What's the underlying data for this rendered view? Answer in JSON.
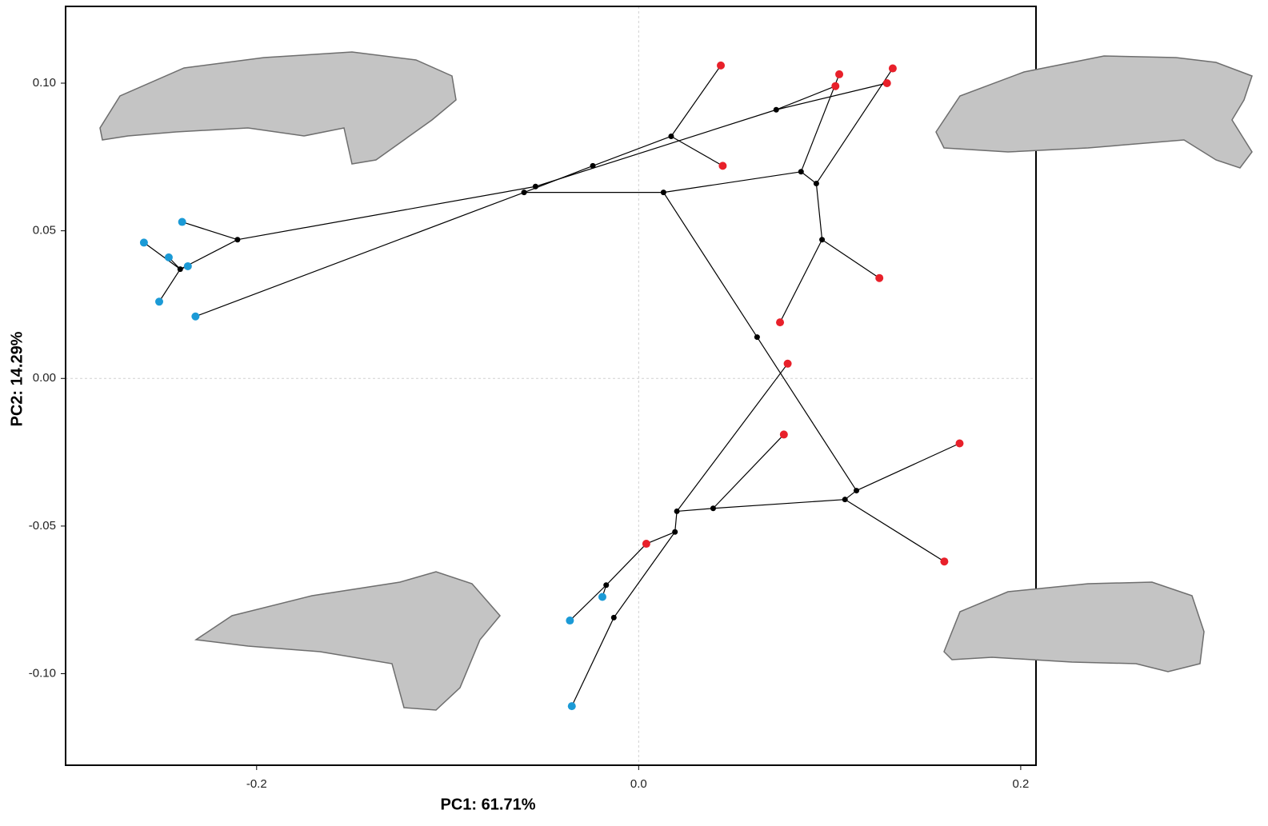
{
  "chart_data": {
    "type": "scatter",
    "x_label": "PC1: 61.71%",
    "y_label": "PC2: 14.29%",
    "xlim": [
      -0.3,
      0.208
    ],
    "ylim": [
      -0.131,
      0.126
    ],
    "xticks": [
      -0.2,
      {
        "value": 0,
        "label": "0.0"
      },
      0.2
    ],
    "yticks": [
      {
        "value": 0.1,
        "label": "0.10"
      },
      0.05,
      {
        "value": 0,
        "label": "0.00"
      },
      -0.05,
      {
        "value": -0.1,
        "label": "-0.10"
      }
    ],
    "zero_lines": true,
    "edge_color": "#000000",
    "edges": [
      {
        "x": [
          -0.21,
          -0.239
        ],
        "y": [
          0.047,
          0.053
        ]
      },
      {
        "x": [
          -0.21,
          -0.24
        ],
        "y": [
          0.047,
          0.037
        ]
      },
      {
        "x": [
          -0.24,
          -0.259
        ],
        "y": [
          0.037,
          0.046
        ]
      },
      {
        "x": [
          -0.24,
          -0.246
        ],
        "y": [
          0.037,
          0.041
        ]
      },
      {
        "x": [
          -0.24,
          -0.236
        ],
        "y": [
          0.037,
          0.038
        ]
      },
      {
        "x": [
          -0.24,
          -0.251
        ],
        "y": [
          0.037,
          0.026
        ]
      },
      {
        "x": [
          -0.21,
          -0.054
        ],
        "y": [
          0.047,
          0.065
        ]
      },
      {
        "x": [
          -0.232,
          -0.06
        ],
        "y": [
          0.021,
          0.063
        ]
      },
      {
        "x": [
          -0.06,
          -0.024
        ],
        "y": [
          0.063,
          0.072
        ]
      },
      {
        "x": [
          -0.024,
          0.017
        ],
        "y": [
          0.072,
          0.082
        ]
      },
      {
        "x": [
          0.017,
          0.043
        ],
        "y": [
          0.082,
          0.106
        ]
      },
      {
        "x": [
          0.017,
          0.044
        ],
        "y": [
          0.082,
          0.072
        ]
      },
      {
        "x": [
          -0.054,
          0.072
        ],
        "y": [
          0.065,
          0.091
        ]
      },
      {
        "x": [
          0.072,
          0.103
        ],
        "y": [
          0.091,
          0.099
        ]
      },
      {
        "x": [
          0.072,
          0.13
        ],
        "y": [
          0.091,
          0.1
        ]
      },
      {
        "x": [
          0.085,
          0.105
        ],
        "y": [
          0.07,
          0.103
        ]
      },
      {
        "x": [
          0.085,
          0.093
        ],
        "y": [
          0.07,
          0.066
        ]
      },
      {
        "x": [
          0.093,
          0.133
        ],
        "y": [
          0.066,
          0.105
        ]
      },
      {
        "x": [
          0.093,
          0.096
        ],
        "y": [
          0.066,
          0.047
        ]
      },
      {
        "x": [
          0.096,
          0.126
        ],
        "y": [
          0.047,
          0.034
        ]
      },
      {
        "x": [
          0.096,
          0.074
        ],
        "y": [
          0.047,
          0.019
        ]
      },
      {
        "x": [
          -0.06,
          0.013
        ],
        "y": [
          0.063,
          0.063
        ]
      },
      {
        "x": [
          0.013,
          0.085
        ],
        "y": [
          0.063,
          0.07
        ]
      },
      {
        "x": [
          0.013,
          0.062
        ],
        "y": [
          0.063,
          0.014
        ]
      },
      {
        "x": [
          0.062,
          0.114
        ],
        "y": [
          0.014,
          -0.038
        ]
      },
      {
        "x": [
          0.114,
          0.168
        ],
        "y": [
          -0.038,
          -0.022
        ]
      },
      {
        "x": [
          0.114,
          0.108
        ],
        "y": [
          -0.038,
          -0.041
        ]
      },
      {
        "x": [
          0.108,
          0.16
        ],
        "y": [
          -0.041,
          -0.062
        ]
      },
      {
        "x": [
          0.108,
          0.039
        ],
        "y": [
          -0.041,
          -0.044
        ]
      },
      {
        "x": [
          0.039,
          0.076
        ],
        "y": [
          -0.044,
          -0.019
        ]
      },
      {
        "x": [
          0.039,
          0.02
        ],
        "y": [
          -0.044,
          -0.045
        ]
      },
      {
        "x": [
          0.02,
          0.078
        ],
        "y": [
          -0.045,
          0.005
        ]
      },
      {
        "x": [
          0.02,
          0.019
        ],
        "y": [
          -0.045,
          -0.052
        ]
      },
      {
        "x": [
          0.019,
          -0.013
        ],
        "y": [
          -0.052,
          -0.081
        ]
      },
      {
        "x": [
          0.019,
          0.004
        ],
        "y": [
          -0.052,
          -0.056
        ]
      },
      {
        "x": [
          0.004,
          -0.017
        ],
        "y": [
          -0.056,
          -0.07
        ]
      },
      {
        "x": [
          -0.017,
          -0.019
        ],
        "y": [
          -0.07,
          -0.074
        ]
      },
      {
        "x": [
          -0.017,
          -0.036
        ],
        "y": [
          -0.07,
          -0.082
        ]
      },
      {
        "x": [
          -0.013,
          -0.035
        ],
        "y": [
          -0.081,
          -0.111
        ]
      }
    ],
    "series": [
      {
        "color": "#000000",
        "radius": 3.5,
        "x": [
          -0.21,
          -0.24,
          -0.06,
          -0.054,
          -0.024,
          0.017,
          0.072,
          0.013,
          0.085,
          0.093,
          0.096,
          0.062,
          0.114,
          0.108,
          0.039,
          0.02,
          0.019,
          -0.017,
          -0.013
        ],
        "y": [
          0.047,
          0.037,
          0.063,
          0.065,
          0.072,
          0.082,
          0.091,
          0.063,
          0.07,
          0.066,
          0.047,
          0.014,
          -0.038,
          -0.041,
          -0.044,
          -0.045,
          -0.052,
          -0.07,
          -0.081
        ]
      },
      {
        "color": "#e8202a",
        "radius": 5,
        "x": [
          0.043,
          0.044,
          0.105,
          0.103,
          0.133,
          0.13,
          0.126,
          0.074,
          0.078,
          0.076,
          0.168,
          0.16,
          0.004
        ],
        "y": [
          0.106,
          0.072,
          0.103,
          0.099,
          0.105,
          0.1,
          0.034,
          0.019,
          0.005,
          -0.019,
          -0.022,
          -0.062,
          -0.056
        ]
      },
      {
        "color": "#1b9ad6",
        "radius": 5,
        "x": [
          -0.239,
          -0.259,
          -0.246,
          -0.236,
          -0.251,
          -0.232,
          -0.019,
          -0.036,
          -0.035
        ],
        "y": [
          0.053,
          0.046,
          0.041,
          0.038,
          0.026,
          0.021,
          -0.074,
          -0.082,
          -0.111
        ]
      }
    ]
  }
}
